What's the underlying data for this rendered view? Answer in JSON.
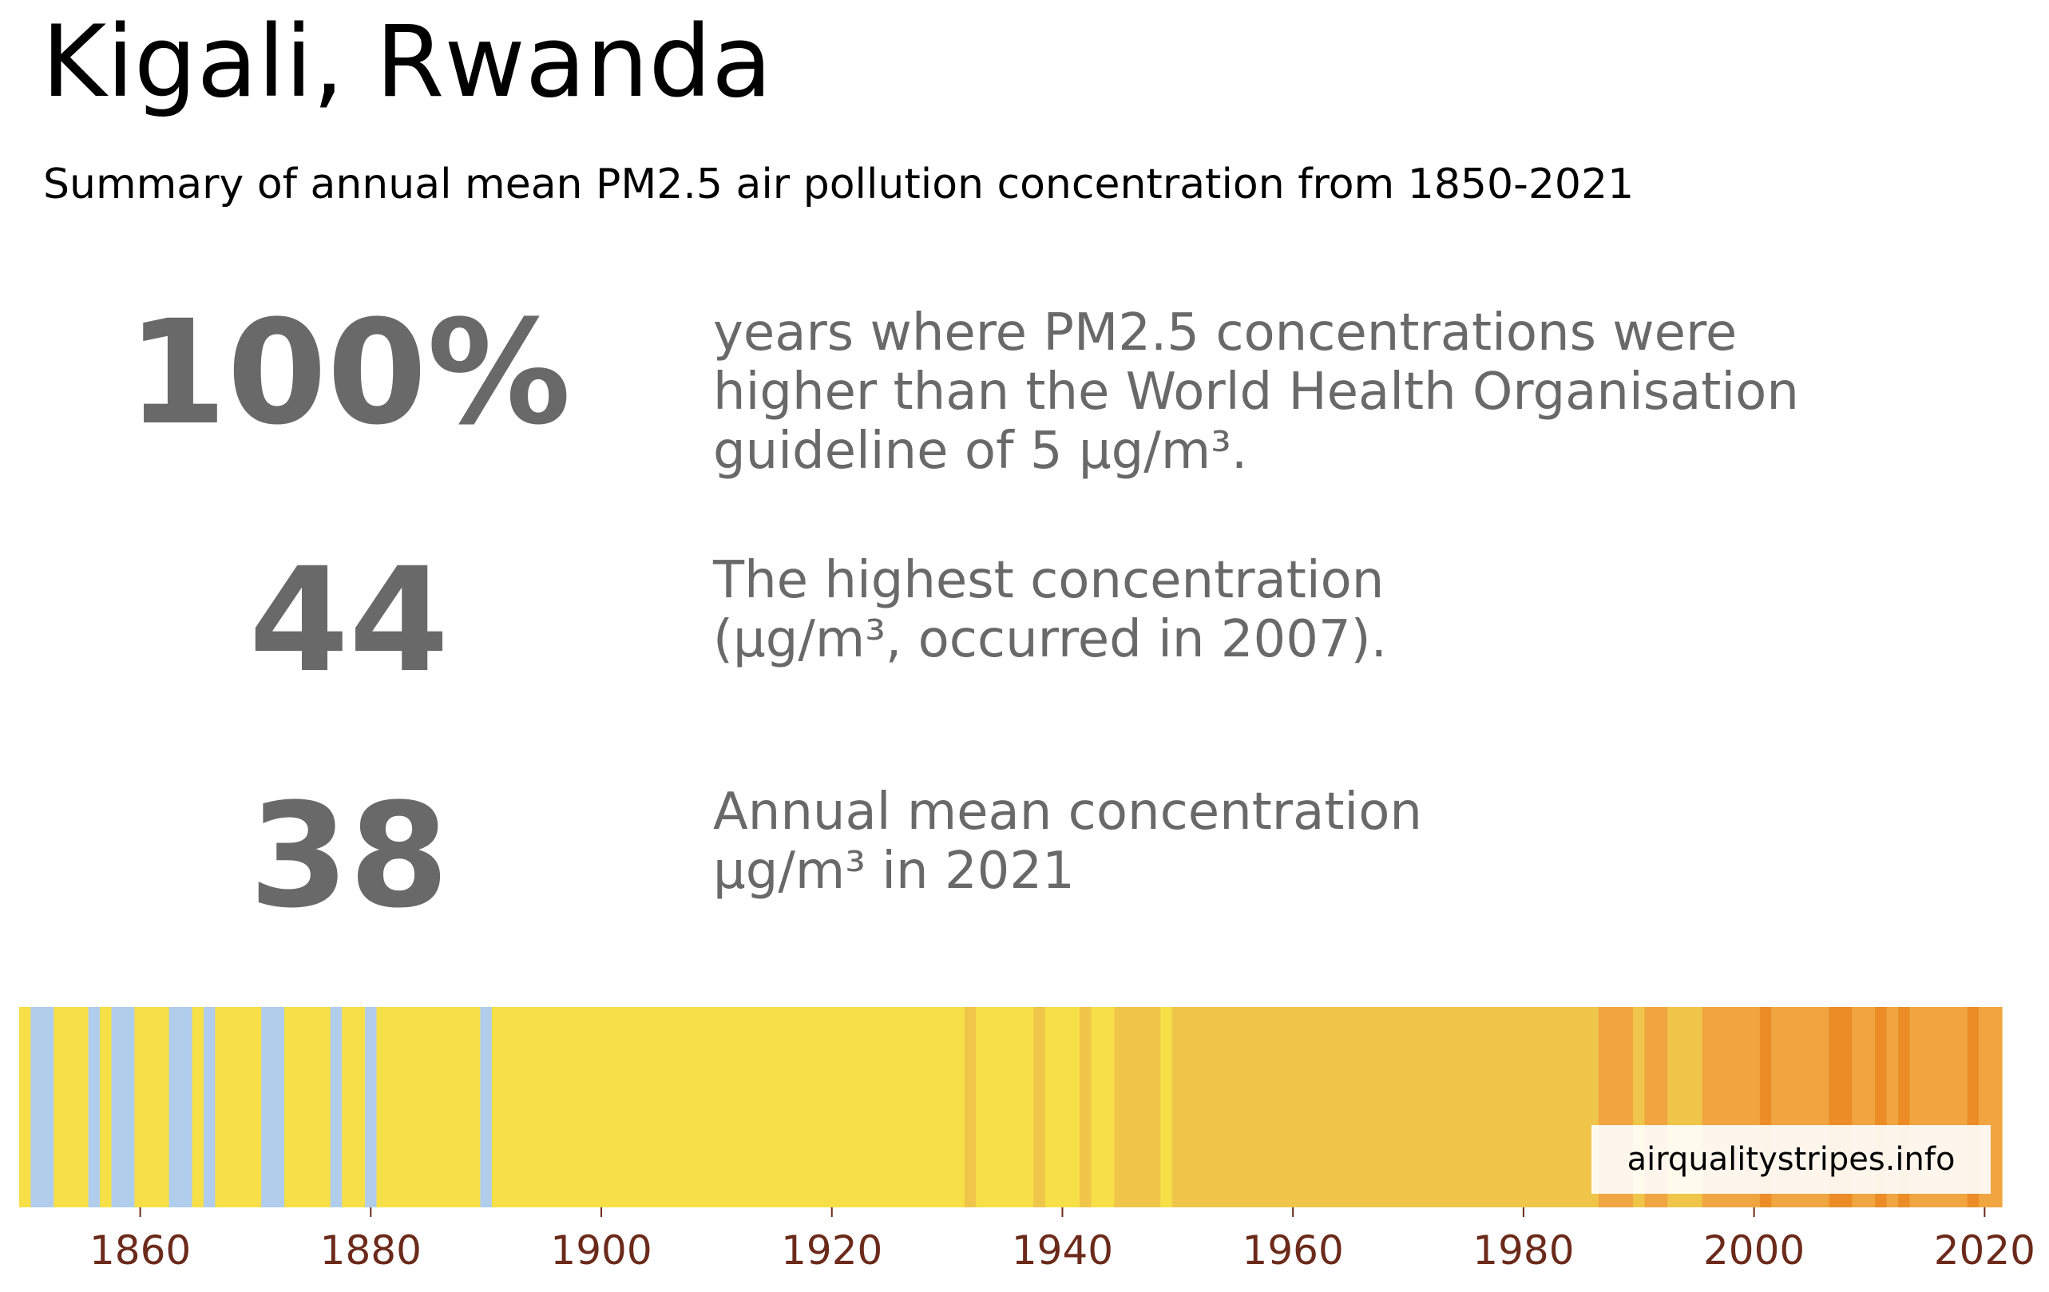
{
  "header": {
    "title": "Kigali, Rwanda",
    "subtitle": "Summary of annual mean PM2.5 air pollution concentration from 1850-2021"
  },
  "stats": [
    {
      "value": "100%",
      "description": "years where PM2.5 concentrations were\nhigher than the World Health Organisation\nguideline of 5 µg/m³."
    },
    {
      "value": "44",
      "description": "The highest concentration\n(µg/m³, occurred in 2007)."
    },
    {
      "value": "38",
      "description": "Annual mean concentration\nµg/m³ in 2021"
    }
  ],
  "badge": "airqualitystripes.info",
  "colors": {
    "text_gray": "#696969",
    "tick_label": "#6b2a1a",
    "stripe_blue": "#b0cdec",
    "stripe_yellow": "#f7df47",
    "stripe_yellow_orange": "#f0c64a",
    "stripe_orange": "#f0a540",
    "stripe_dark_orange": "#eb8c26"
  },
  "chart_data": {
    "type": "heatmap",
    "title": "",
    "xlabel": "",
    "ylabel": "",
    "xlim": [
      1849.5,
      2021.5
    ],
    "xticks": [
      1860,
      1880,
      1900,
      1920,
      1940,
      1960,
      1980,
      2000,
      2020
    ],
    "grid": false,
    "legend": "none",
    "color_levels": {
      "blue": "#b0cdec",
      "yellow": "#f7df47",
      "yellow_orange": "#f0c64a",
      "orange": "#f0a540",
      "dark_orange": "#eb8c26"
    },
    "stripes": [
      {
        "from": 1850,
        "to": 1850,
        "level": "yellow"
      },
      {
        "from": 1851,
        "to": 1852,
        "level": "blue"
      },
      {
        "from": 1853,
        "to": 1855,
        "level": "yellow"
      },
      {
        "from": 1856,
        "to": 1856,
        "level": "blue"
      },
      {
        "from": 1857,
        "to": 1857,
        "level": "yellow"
      },
      {
        "from": 1858,
        "to": 1859,
        "level": "blue"
      },
      {
        "from": 1860,
        "to": 1862,
        "level": "yellow"
      },
      {
        "from": 1863,
        "to": 1864,
        "level": "blue"
      },
      {
        "from": 1865,
        "to": 1865,
        "level": "yellow"
      },
      {
        "from": 1866,
        "to": 1866,
        "level": "blue"
      },
      {
        "from": 1867,
        "to": 1870,
        "level": "yellow"
      },
      {
        "from": 1871,
        "to": 1872,
        "level": "blue"
      },
      {
        "from": 1873,
        "to": 1876,
        "level": "yellow"
      },
      {
        "from": 1877,
        "to": 1877,
        "level": "blue"
      },
      {
        "from": 1878,
        "to": 1879,
        "level": "yellow"
      },
      {
        "from": 1880,
        "to": 1880,
        "level": "blue"
      },
      {
        "from": 1881,
        "to": 1889,
        "level": "yellow"
      },
      {
        "from": 1890,
        "to": 1890,
        "level": "blue"
      },
      {
        "from": 1891,
        "to": 1931,
        "level": "yellow"
      },
      {
        "from": 1932,
        "to": 1932,
        "level": "yellow_orange"
      },
      {
        "from": 1933,
        "to": 1937,
        "level": "yellow"
      },
      {
        "from": 1938,
        "to": 1938,
        "level": "yellow_orange"
      },
      {
        "from": 1939,
        "to": 1941,
        "level": "yellow"
      },
      {
        "from": 1942,
        "to": 1942,
        "level": "yellow_orange"
      },
      {
        "from": 1943,
        "to": 1944,
        "level": "yellow"
      },
      {
        "from": 1945,
        "to": 1948,
        "level": "yellow_orange"
      },
      {
        "from": 1949,
        "to": 1949,
        "level": "yellow"
      },
      {
        "from": 1950,
        "to": 1986,
        "level": "yellow_orange"
      },
      {
        "from": 1987,
        "to": 1989,
        "level": "orange"
      },
      {
        "from": 1990,
        "to": 1990,
        "level": "yellow_orange"
      },
      {
        "from": 1991,
        "to": 1992,
        "level": "orange"
      },
      {
        "from": 1993,
        "to": 1995,
        "level": "yellow_orange"
      },
      {
        "from": 1996,
        "to": 2000,
        "level": "orange"
      },
      {
        "from": 2001,
        "to": 2001,
        "level": "dark_orange"
      },
      {
        "from": 2002,
        "to": 2006,
        "level": "orange"
      },
      {
        "from": 2007,
        "to": 2008,
        "level": "dark_orange"
      },
      {
        "from": 2009,
        "to": 2010,
        "level": "orange"
      },
      {
        "from": 2011,
        "to": 2011,
        "level": "dark_orange"
      },
      {
        "from": 2012,
        "to": 2012,
        "level": "orange"
      },
      {
        "from": 2013,
        "to": 2013,
        "level": "dark_orange"
      },
      {
        "from": 2014,
        "to": 2018,
        "level": "orange"
      },
      {
        "from": 2019,
        "to": 2019,
        "level": "dark_orange"
      },
      {
        "from": 2020,
        "to": 2021,
        "level": "orange"
      }
    ]
  }
}
